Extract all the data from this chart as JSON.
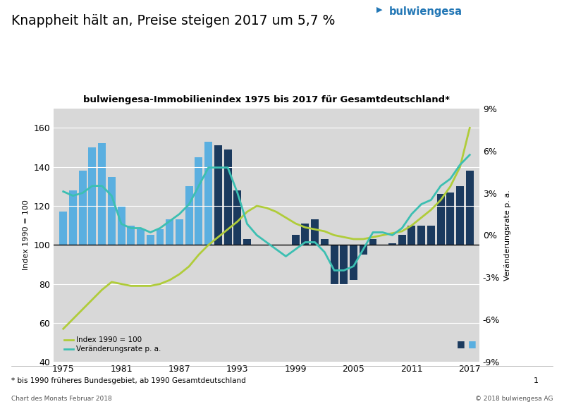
{
  "title_main": "Knappheit hält an, Preise steigen 2017 um 5,7 %",
  "chart_title": "bulwiengesa-Immobilienindex 1975 bis 2017 für Gesamtdeutschland*",
  "ylabel_left": "Index 1990 = 100",
  "ylabel_right": "Veränderungsrate p. a.",
  "footnote": "* bis 1990 früheres Bundesgebiet, ab 1990 Gesamtdeutschland",
  "copyright": "© 2018 bulwiengesa AG",
  "source_line": "Chart des Monats Februar 2018",
  "page_num": "1",
  "background_color": "#d8d8d8",
  "page_background": "#ffffff",
  "years": [
    1975,
    1976,
    1977,
    1978,
    1979,
    1980,
    1981,
    1982,
    1983,
    1984,
    1985,
    1986,
    1987,
    1988,
    1989,
    1990,
    1991,
    1992,
    1993,
    1994,
    1995,
    1996,
    1997,
    1998,
    1999,
    2000,
    2001,
    2002,
    2003,
    2004,
    2005,
    2006,
    2007,
    2008,
    2009,
    2010,
    2011,
    2012,
    2013,
    2014,
    2015,
    2016,
    2017
  ],
  "index_values": [
    57,
    62,
    67,
    72,
    77,
    81,
    80,
    79,
    79,
    79,
    80,
    82,
    85,
    89,
    95,
    100,
    104,
    108,
    112,
    117,
    120,
    119,
    117,
    114,
    111,
    109,
    108,
    107,
    105,
    104,
    103,
    103,
    104,
    105,
    106,
    107,
    110,
    114,
    118,
    123,
    130,
    140,
    160
  ],
  "bar_values": [
    117,
    128,
    138,
    150,
    152,
    135,
    120,
    110,
    108,
    105,
    108,
    113,
    113,
    130,
    145,
    153,
    151,
    149,
    128,
    103,
    100,
    100,
    100,
    100,
    105,
    111,
    113,
    103,
    80,
    80,
    82,
    95,
    103,
    100,
    101,
    105,
    110,
    110,
    110,
    126,
    127,
    130,
    138
  ],
  "bar_colors_pre1990": "#5aafe0",
  "bar_colors_post1990": "#1b3a5e",
  "line_color_index": "#b0cc3a",
  "line_color_change": "#3cbfb2",
  "change_rate_values": [
    3.1,
    2.8,
    3.0,
    3.5,
    3.5,
    2.8,
    0.8,
    0.5,
    0.5,
    0.2,
    0.5,
    1.0,
    1.5,
    2.2,
    3.5,
    4.8,
    4.8,
    4.8,
    3.0,
    0.8,
    0.0,
    -0.5,
    -1.0,
    -1.5,
    -1.0,
    -0.5,
    -0.5,
    -1.2,
    -2.5,
    -2.5,
    -2.2,
    -1.0,
    0.2,
    0.2,
    0.0,
    0.5,
    1.5,
    2.2,
    2.5,
    3.5,
    4.0,
    5.0,
    5.7
  ],
  "ylim_left": [
    40,
    170
  ],
  "ylim_right": [
    -9,
    9
  ],
  "xticks": [
    1975,
    1981,
    1987,
    1993,
    1999,
    2005,
    2011,
    2017
  ],
  "yticks_left": [
    40,
    60,
    80,
    100,
    120,
    140,
    160
  ],
  "yticks_right": [
    -9,
    -6,
    -3,
    0,
    3,
    6,
    9
  ],
  "bar_width": 0.8
}
